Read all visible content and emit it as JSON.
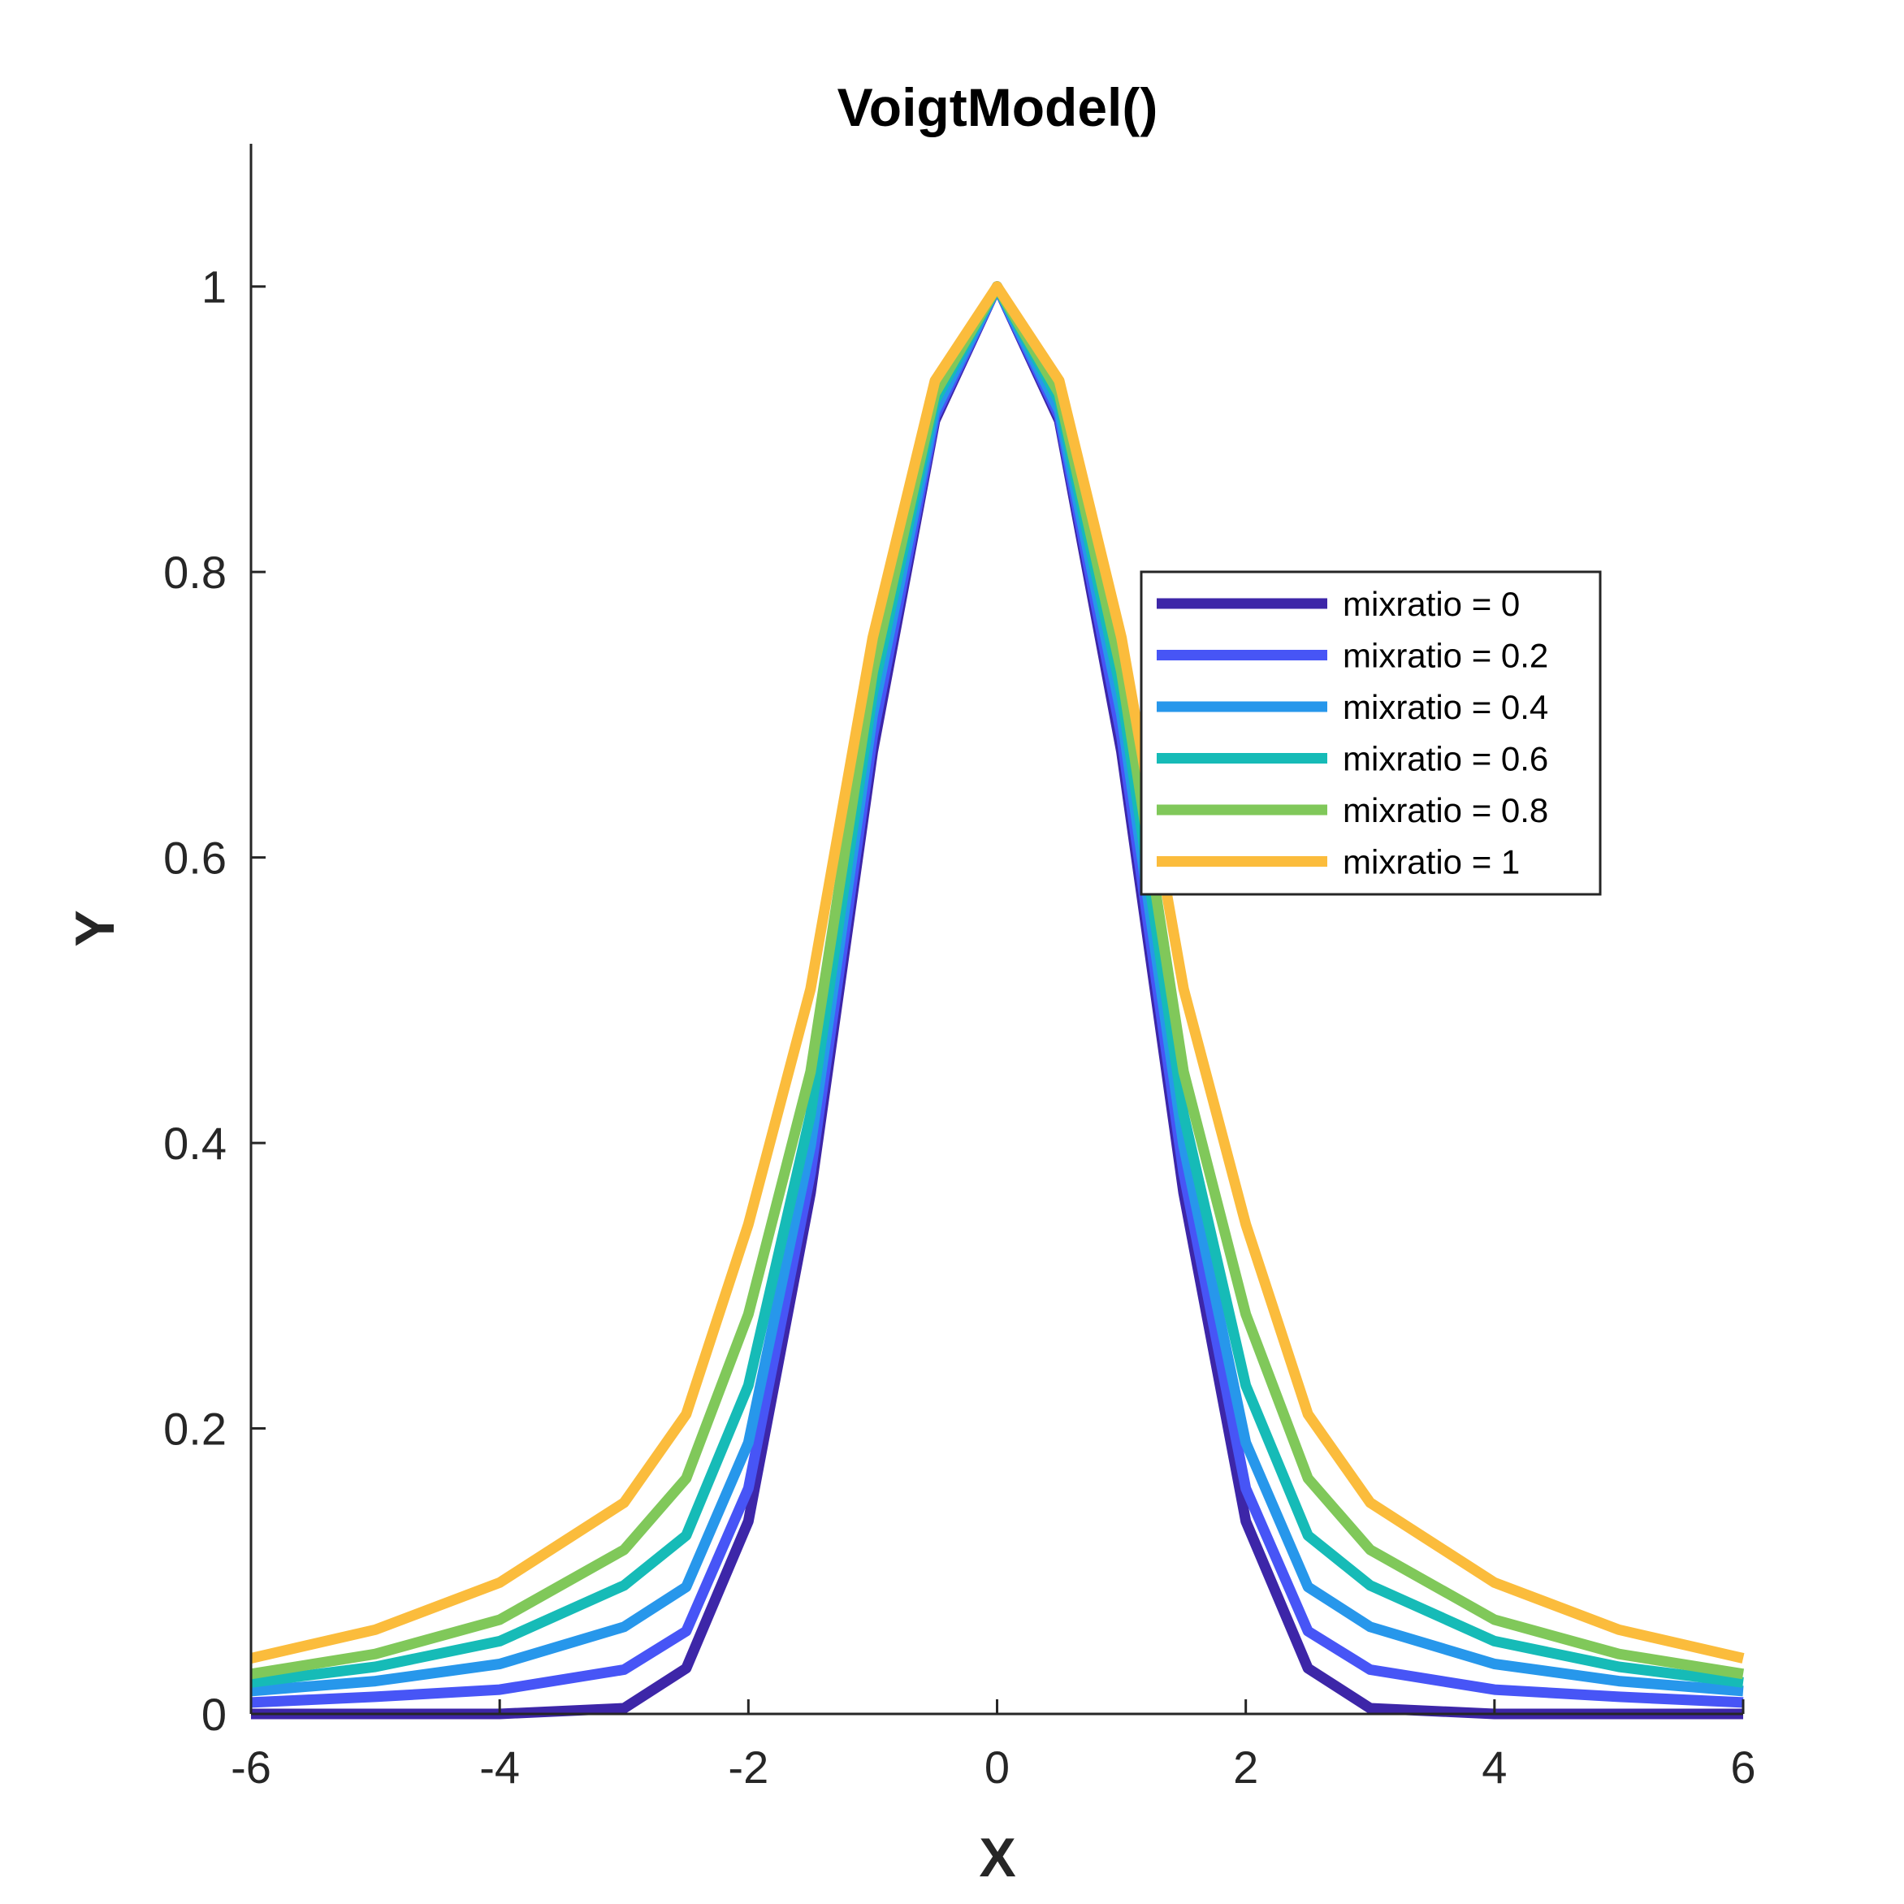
{
  "chart_data": {
    "type": "line",
    "title": "VoigtModel()",
    "xlabel": "X",
    "ylabel": "Y",
    "xlim": [
      -6,
      6
    ],
    "ylim": [
      0,
      1.1
    ],
    "xticks": [
      -6,
      -4,
      -2,
      0,
      2,
      4,
      6
    ],
    "yticks": [
      0,
      0.2,
      0.4,
      0.6,
      0.8,
      1
    ],
    "xtick_labels": [
      "-6",
      "-4",
      "-2",
      "0",
      "2",
      "4",
      "6"
    ],
    "ytick_labels": [
      "0",
      "0.2",
      "0.4",
      "0.6",
      "0.8",
      "1"
    ],
    "grid": false,
    "legend_position": "right",
    "x_samples": [
      -6,
      -5,
      -4,
      -3,
      -2.5,
      -2,
      -1.5,
      -1,
      -0.5,
      0,
      0.5,
      1,
      1.5,
      2,
      2.5,
      3,
      4,
      5,
      6
    ],
    "series": [
      {
        "name": "mixratio = 0",
        "color": "#3d26a8",
        "values": [
          0.0,
          0.0,
          0.0,
          0.004,
          0.032,
          0.135,
          0.365,
          0.674,
          0.906,
          1.0,
          0.906,
          0.674,
          0.365,
          0.135,
          0.032,
          0.004,
          0.0,
          0.0,
          0.0
        ]
      },
      {
        "name": "mixratio = 0.2",
        "color": "#4755f6",
        "values": [
          0.008,
          0.012,
          0.017,
          0.031,
          0.058,
          0.158,
          0.379,
          0.685,
          0.909,
          1.0,
          0.909,
          0.685,
          0.379,
          0.158,
          0.058,
          0.031,
          0.017,
          0.012,
          0.008
        ]
      },
      {
        "name": "mixratio = 0.4",
        "color": "#2797eb",
        "values": [
          0.016,
          0.023,
          0.035,
          0.061,
          0.089,
          0.19,
          0.398,
          0.7,
          0.913,
          1.0,
          0.913,
          0.7,
          0.398,
          0.19,
          0.089,
          0.061,
          0.035,
          0.023,
          0.016
        ]
      },
      {
        "name": "mixratio = 0.6",
        "color": "#16bbb7",
        "values": [
          0.022,
          0.033,
          0.051,
          0.09,
          0.125,
          0.23,
          0.42,
          0.715,
          0.92,
          1.0,
          0.92,
          0.715,
          0.42,
          0.23,
          0.125,
          0.09,
          0.051,
          0.033,
          0.022
        ]
      },
      {
        "name": "mixratio = 0.8",
        "color": "#80c85a",
        "values": [
          0.028,
          0.042,
          0.066,
          0.115,
          0.165,
          0.28,
          0.45,
          0.73,
          0.925,
          1.0,
          0.925,
          0.73,
          0.45,
          0.28,
          0.165,
          0.115,
          0.066,
          0.042,
          0.028
        ]
      },
      {
        "name": "mixratio = 1",
        "color": "#fbbc3c",
        "values": [
          0.039,
          0.059,
          0.092,
          0.148,
          0.21,
          0.343,
          0.508,
          0.754,
          0.934,
          1.0,
          0.934,
          0.754,
          0.508,
          0.343,
          0.21,
          0.148,
          0.092,
          0.059,
          0.039
        ]
      }
    ]
  }
}
